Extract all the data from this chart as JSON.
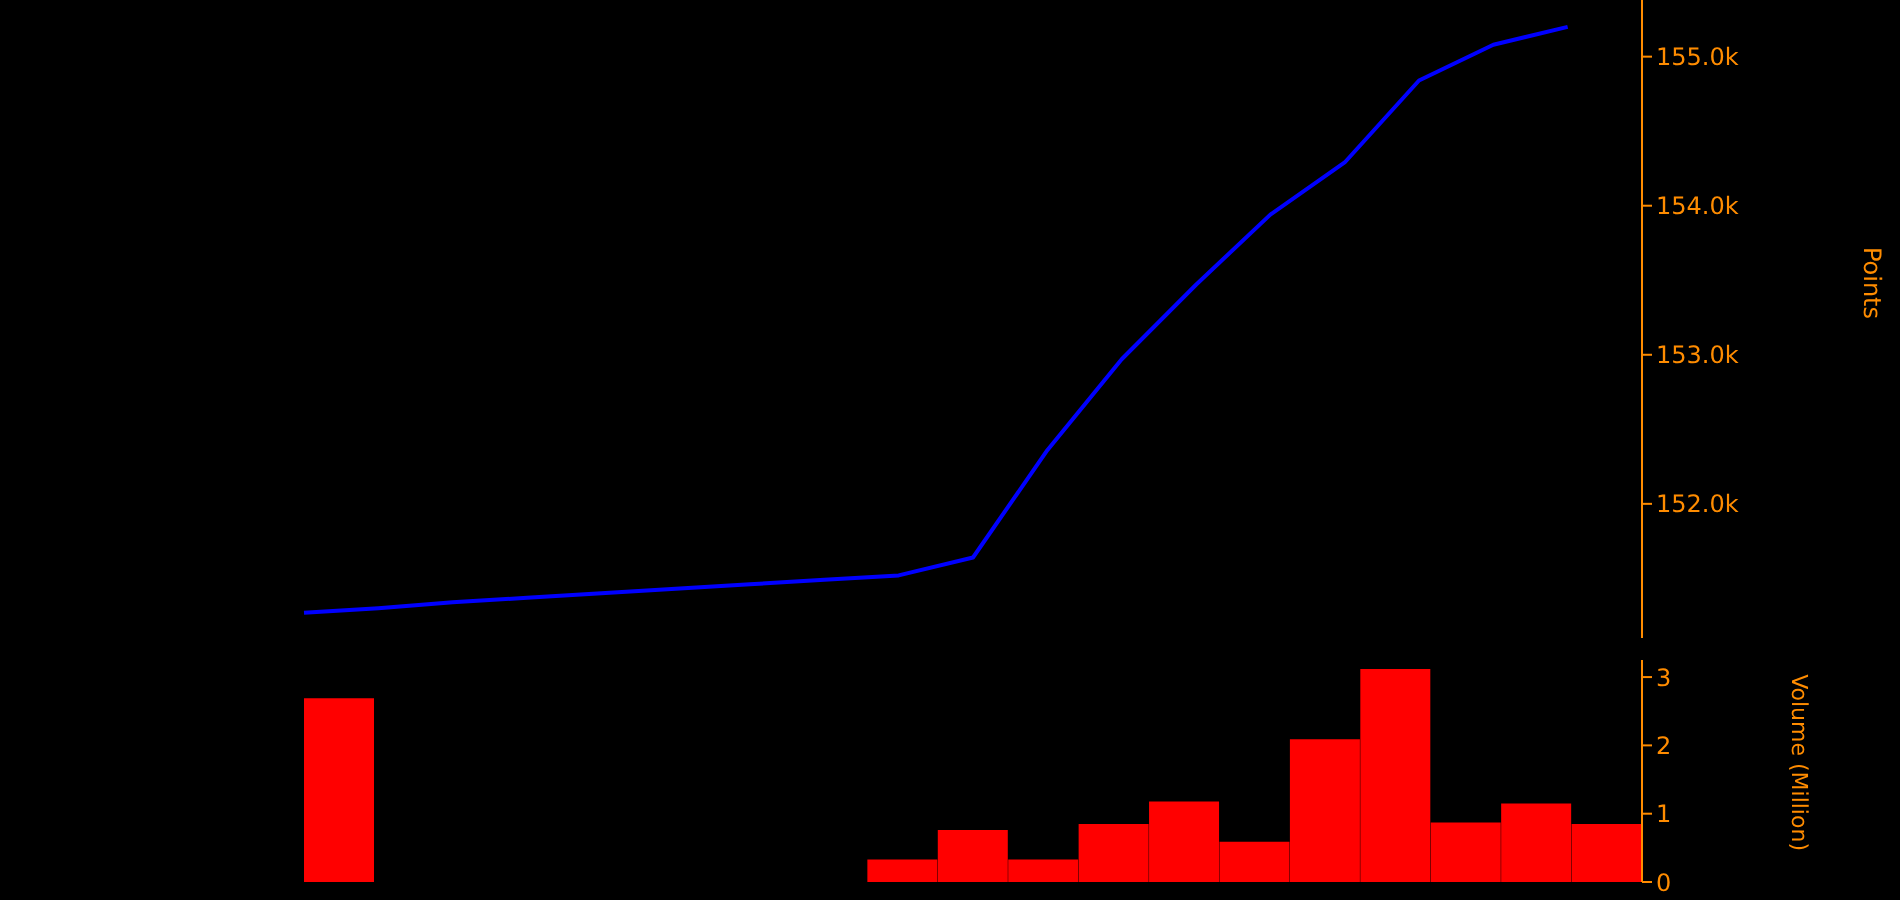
{
  "chart_data": [
    {
      "type": "line",
      "categories": [
        null,
        null,
        null,
        null,
        null,
        null,
        null,
        null,
        null,
        null,
        null,
        null,
        null,
        null,
        null,
        null,
        null,
        null,
        null
      ],
      "values": [
        151270,
        151300,
        151340,
        151370,
        151400,
        151430,
        151460,
        151490,
        151520,
        151640,
        152360,
        152970,
        153470,
        153940,
        154290,
        154840,
        155080,
        155200,
        null
      ],
      "color": "#0000ff",
      "ylabel": "Points",
      "ylim": [
        151100,
        155380
      ],
      "yticks": [
        {
          "value": 152000,
          "label": "152.0k"
        },
        {
          "value": 153000,
          "label": "153.0k"
        },
        {
          "value": 154000,
          "label": "154.0k"
        },
        {
          "value": 155000,
          "label": "155.0k"
        }
      ],
      "tick_labels": "y"
    },
    {
      "type": "bar",
      "categories": [
        null,
        null,
        null,
        null,
        null,
        null,
        null,
        null,
        null,
        null,
        null,
        null,
        null,
        null,
        null,
        null,
        null,
        null,
        null
      ],
      "values": [
        2.69,
        null,
        null,
        null,
        null,
        null,
        null,
        null,
        0.33,
        0.76,
        0.33,
        0.85,
        1.18,
        0.59,
        2.09,
        3.12,
        0.87,
        1.15,
        0.85
      ],
      "color": "#ff0000",
      "ylabel": "Volume (Million)",
      "ylim": [
        0,
        3.25
      ],
      "yticks": [
        0,
        1,
        2,
        3
      ],
      "tick_labels": "y"
    }
  ]
}
